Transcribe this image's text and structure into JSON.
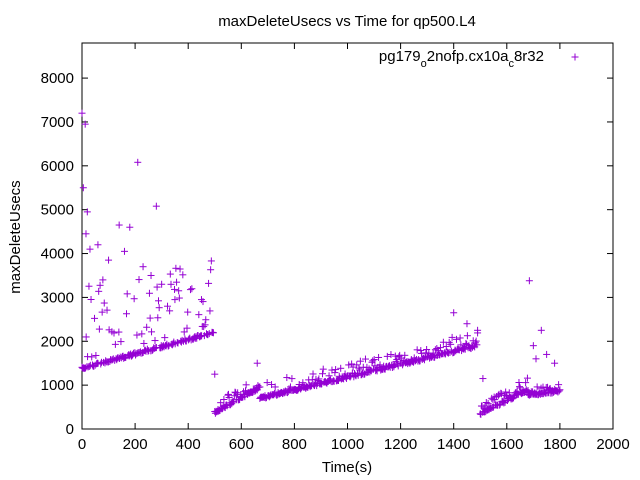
{
  "chart_data": {
    "type": "scatter",
    "title": "maxDeleteUsecs vs Time for qp500.L4",
    "xlabel": "Time(s)",
    "ylabel": "maxDeleteUsecs",
    "xlim": [
      0,
      2000
    ],
    "ylim": [
      0,
      8800
    ],
    "xticks": [
      0,
      200,
      400,
      600,
      800,
      1000,
      1200,
      1400,
      1600,
      1800,
      2000
    ],
    "yticks": [
      0,
      1000,
      2000,
      3000,
      4000,
      5000,
      6000,
      7000,
      8000
    ],
    "grid": false,
    "legend_position": "top-right",
    "legend": {
      "parts": [
        {
          "text": "pg179",
          "sub": false
        },
        {
          "text": "o",
          "sub": true
        },
        {
          "text": "2nofp.cx10a",
          "sub": false
        },
        {
          "text": "c",
          "sub": true
        },
        {
          "text": "8r32",
          "sub": false
        }
      ]
    },
    "series": [
      {
        "marker": "+",
        "color": "#9400d3",
        "segments": [
          {
            "x_start": 0,
            "x_end": 495,
            "y_start": 1380,
            "y_end": 2200,
            "count": 190,
            "scatter_above": 1900
          },
          {
            "x_start": 500,
            "x_end": 670,
            "y_start": 380,
            "y_end": 950,
            "count": 70,
            "scatter_above": 220
          },
          {
            "x_start": 670,
            "x_end": 1490,
            "y_start": 700,
            "y_end": 1900,
            "count": 300,
            "scatter_above": 300
          },
          {
            "x_start": 1500,
            "x_end": 1680,
            "y_start": 350,
            "y_end": 900,
            "count": 80,
            "scatter_above": 250
          },
          {
            "x_start": 1680,
            "x_end": 1800,
            "y_start": 780,
            "y_end": 870,
            "count": 50,
            "scatter_above": 150
          }
        ],
        "outliers": [
          {
            "x": 0,
            "y": 7200
          },
          {
            "x": 12,
            "y": 6950
          },
          {
            "x": 5,
            "y": 5500
          },
          {
            "x": 20,
            "y": 4950
          },
          {
            "x": 15,
            "y": 4450
          },
          {
            "x": 210,
            "y": 6080
          },
          {
            "x": 280,
            "y": 5080
          },
          {
            "x": 140,
            "y": 4650
          },
          {
            "x": 180,
            "y": 4600
          },
          {
            "x": 30,
            "y": 4100
          },
          {
            "x": 60,
            "y": 4200
          },
          {
            "x": 100,
            "y": 3850
          },
          {
            "x": 160,
            "y": 4050
          },
          {
            "x": 230,
            "y": 3700
          },
          {
            "x": 260,
            "y": 3500
          },
          {
            "x": 300,
            "y": 3300
          },
          {
            "x": 350,
            "y": 2950
          },
          {
            "x": 450,
            "y": 2950
          },
          {
            "x": 500,
            "y": 1250
          },
          {
            "x": 660,
            "y": 1500
          },
          {
            "x": 1400,
            "y": 2650
          },
          {
            "x": 1450,
            "y": 2400
          },
          {
            "x": 1490,
            "y": 2250
          },
          {
            "x": 1510,
            "y": 1150
          },
          {
            "x": 1685,
            "y": 3380
          },
          {
            "x": 1730,
            "y": 2250
          },
          {
            "x": 1700,
            "y": 1900
          },
          {
            "x": 1750,
            "y": 1700
          },
          {
            "x": 1780,
            "y": 1500
          },
          {
            "x": 1710,
            "y": 1600
          }
        ]
      }
    ]
  }
}
